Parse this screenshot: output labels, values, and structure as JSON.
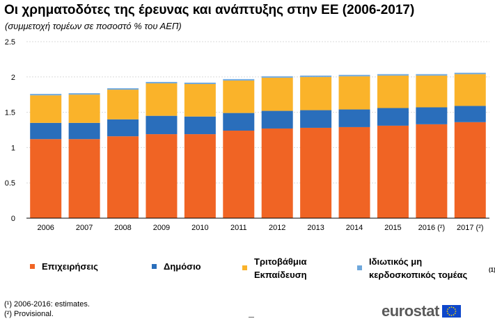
{
  "header": {
    "title": "Οι χρηματοδότες της έρευνας και ανάπτυξης στην ΕΕ (2006-2017)",
    "subtitle": "(συμμετοχή τομέων σε ποσοστό % του ΑΕΠ)"
  },
  "chart_data": {
    "type": "bar",
    "stacked": true,
    "categories": [
      "2006",
      "2007",
      "2008",
      "2009",
      "2010",
      "2011",
      "2012",
      "2013",
      "2014",
      "2015",
      "2016 (²)",
      "2017 (²)"
    ],
    "series": [
      {
        "name": "Επιχειρήσεις",
        "color": "#f06424",
        "values": [
          1.12,
          1.12,
          1.16,
          1.19,
          1.19,
          1.24,
          1.27,
          1.28,
          1.29,
          1.31,
          1.33,
          1.36
        ]
      },
      {
        "name": "Δημόσιο",
        "color": "#2a6ebb",
        "values": [
          0.23,
          0.23,
          0.24,
          0.26,
          0.25,
          0.25,
          0.25,
          0.25,
          0.25,
          0.25,
          0.24,
          0.23
        ]
      },
      {
        "name": "Τριτοβάθμια Εκπαίδευση",
        "color": "#fab32a",
        "values": [
          0.39,
          0.4,
          0.42,
          0.46,
          0.46,
          0.46,
          0.47,
          0.47,
          0.47,
          0.46,
          0.45,
          0.45
        ]
      },
      {
        "name": "Ιδιωτικός μη κερδοσκοπικός τομέας",
        "color": "#6fa8dc",
        "values": [
          0.02,
          0.02,
          0.02,
          0.02,
          0.02,
          0.02,
          0.02,
          0.02,
          0.02,
          0.02,
          0.02,
          0.02
        ]
      }
    ],
    "ylim": [
      0,
      2.5
    ],
    "yticks": [
      "0",
      "0.5",
      "1",
      "1.5",
      "2",
      "2.5"
    ],
    "ytick_values": [
      0,
      0.5,
      1,
      1.5,
      2,
      2.5
    ],
    "grid": true,
    "legend_position": "bottom"
  },
  "legend": {
    "items": [
      {
        "label": "Επιχειρήσεις",
        "color": "#f06424"
      },
      {
        "label": "Δημόσιο",
        "color": "#2a6ebb"
      },
      {
        "label": "Τριτοβάθμια\nΕκπαίδευση",
        "color": "#fab32a"
      },
      {
        "label": "Ιδιωτικός μη\nκερδοσκοπικός τομέας",
        "color": "#6fa8dc"
      }
    ],
    "note_marker": "(1)"
  },
  "footnotes": {
    "note1": "(¹) 2006-2016: estimates.",
    "note2": "(²) Provisional."
  },
  "logo": {
    "text": "eurostat",
    "icon": "eu-flag-icon"
  }
}
